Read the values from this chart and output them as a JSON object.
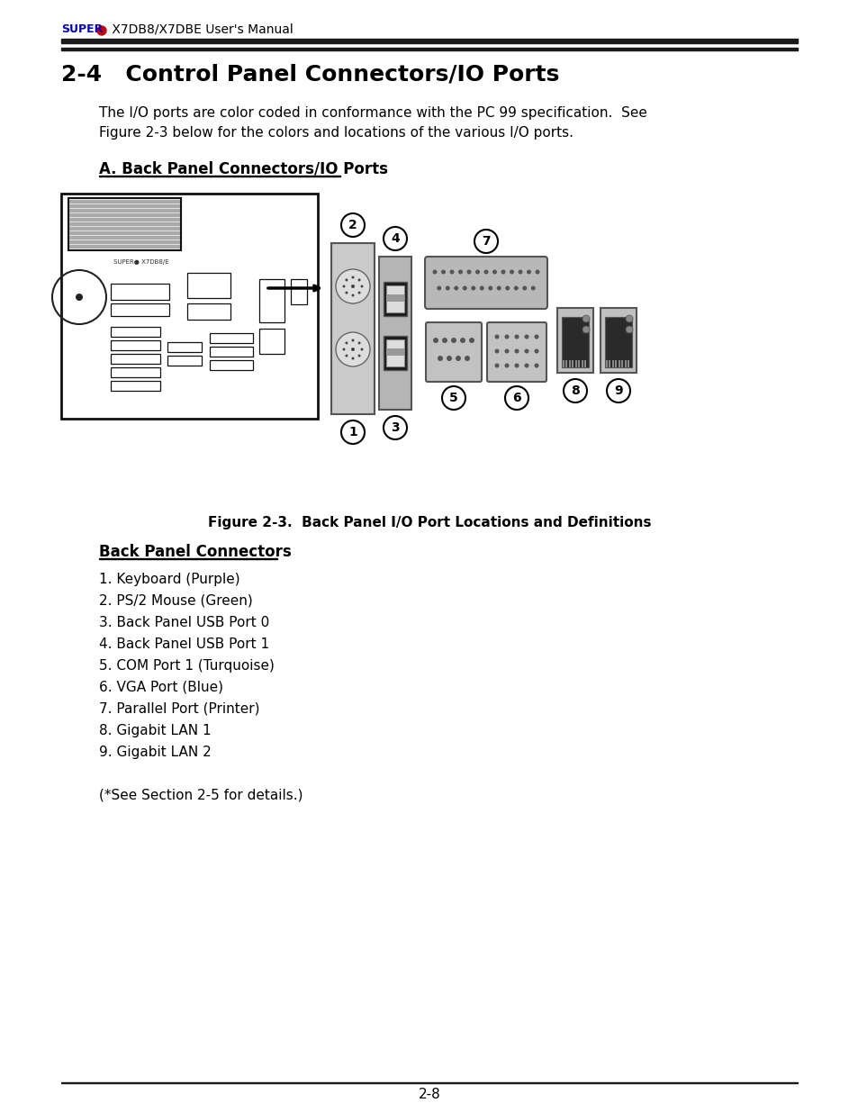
{
  "page_title_super": "SUPER",
  "page_title_rest": " X7DB8/X7DBE User's Manual",
  "section_title": "2-4   Control Panel Connectors/IO Ports",
  "intro_line1": "The I/O ports are color coded in conformance with the PC 99 specification.  See",
  "intro_line2": "Figure 2-3 below for the colors and locations of the various I/O ports.",
  "subsection_title": "A. Back Panel Connectors/IO Ports",
  "figure_caption": "Figure 2-3.  Back Panel I/O Port Locations and Definitions",
  "connectors_title": "Back Panel Connectors",
  "connectors_list": [
    "1. Keyboard (Purple)",
    "2. PS/2 Mouse (Green)",
    "3. Back Panel USB Port 0",
    "4. Back Panel USB Port 1",
    "5. COM Port 1 (Turquoise)",
    "6. VGA Port (Blue)",
    "7. Parallel Port (Printer)",
    "8. Gigabit LAN 1",
    "9. Gigabit LAN 2"
  ],
  "footer_note": "(*See Section 2-5 for details.)",
  "page_number": "2-8",
  "bg_color": "#ffffff",
  "text_color": "#000000",
  "header_line_color": "#1a1a1a",
  "super_color": "#0000cc",
  "dot_color": "#cc0000"
}
